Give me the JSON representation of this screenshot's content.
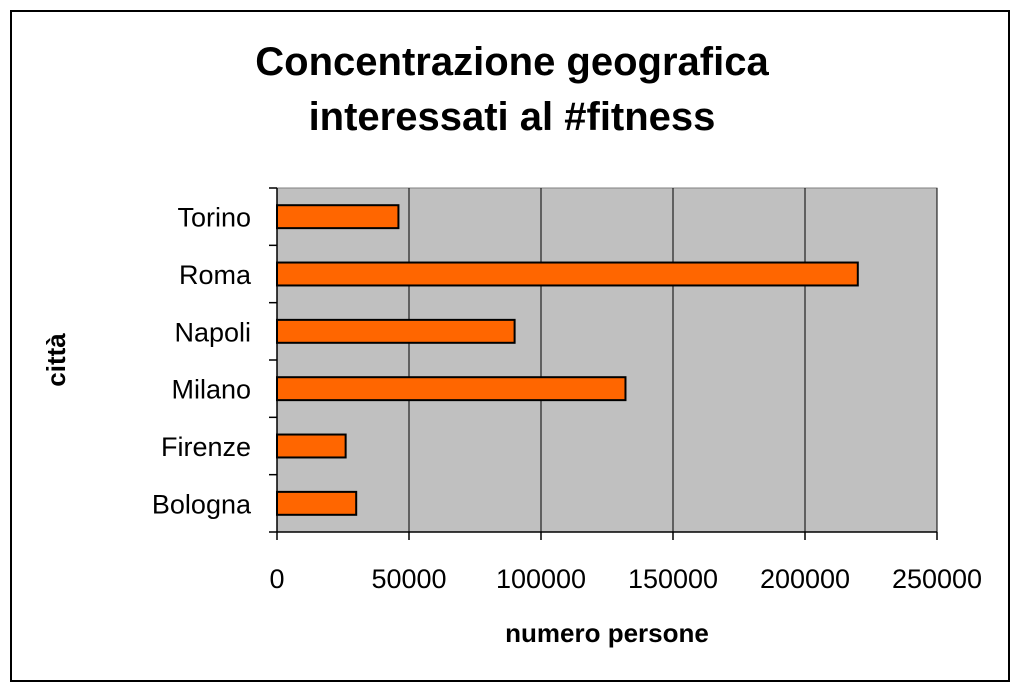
{
  "chart_data": {
    "type": "bar",
    "orientation": "horizontal",
    "title_lines": [
      "Concentrazione geografica",
      "interessati al #fitness"
    ],
    "xlabel": "numero persone",
    "ylabel": "città",
    "categories": [
      "Torino",
      "Roma",
      "Napoli",
      "Milano",
      "Firenze",
      "Bologna"
    ],
    "values": [
      46000,
      220000,
      90000,
      132000,
      26000,
      30000
    ],
    "xlim": [
      0,
      250000
    ],
    "xticks": [
      0,
      50000,
      100000,
      150000,
      200000,
      250000
    ],
    "xtick_labels": [
      "0",
      "50000",
      "100000",
      "150000",
      "200000",
      "250000"
    ],
    "grid": "vertical",
    "legend": "none",
    "colors": {
      "bar": "#ff6600",
      "bar_edge": "#000000",
      "plot_bg": "#c0c0c0"
    }
  }
}
